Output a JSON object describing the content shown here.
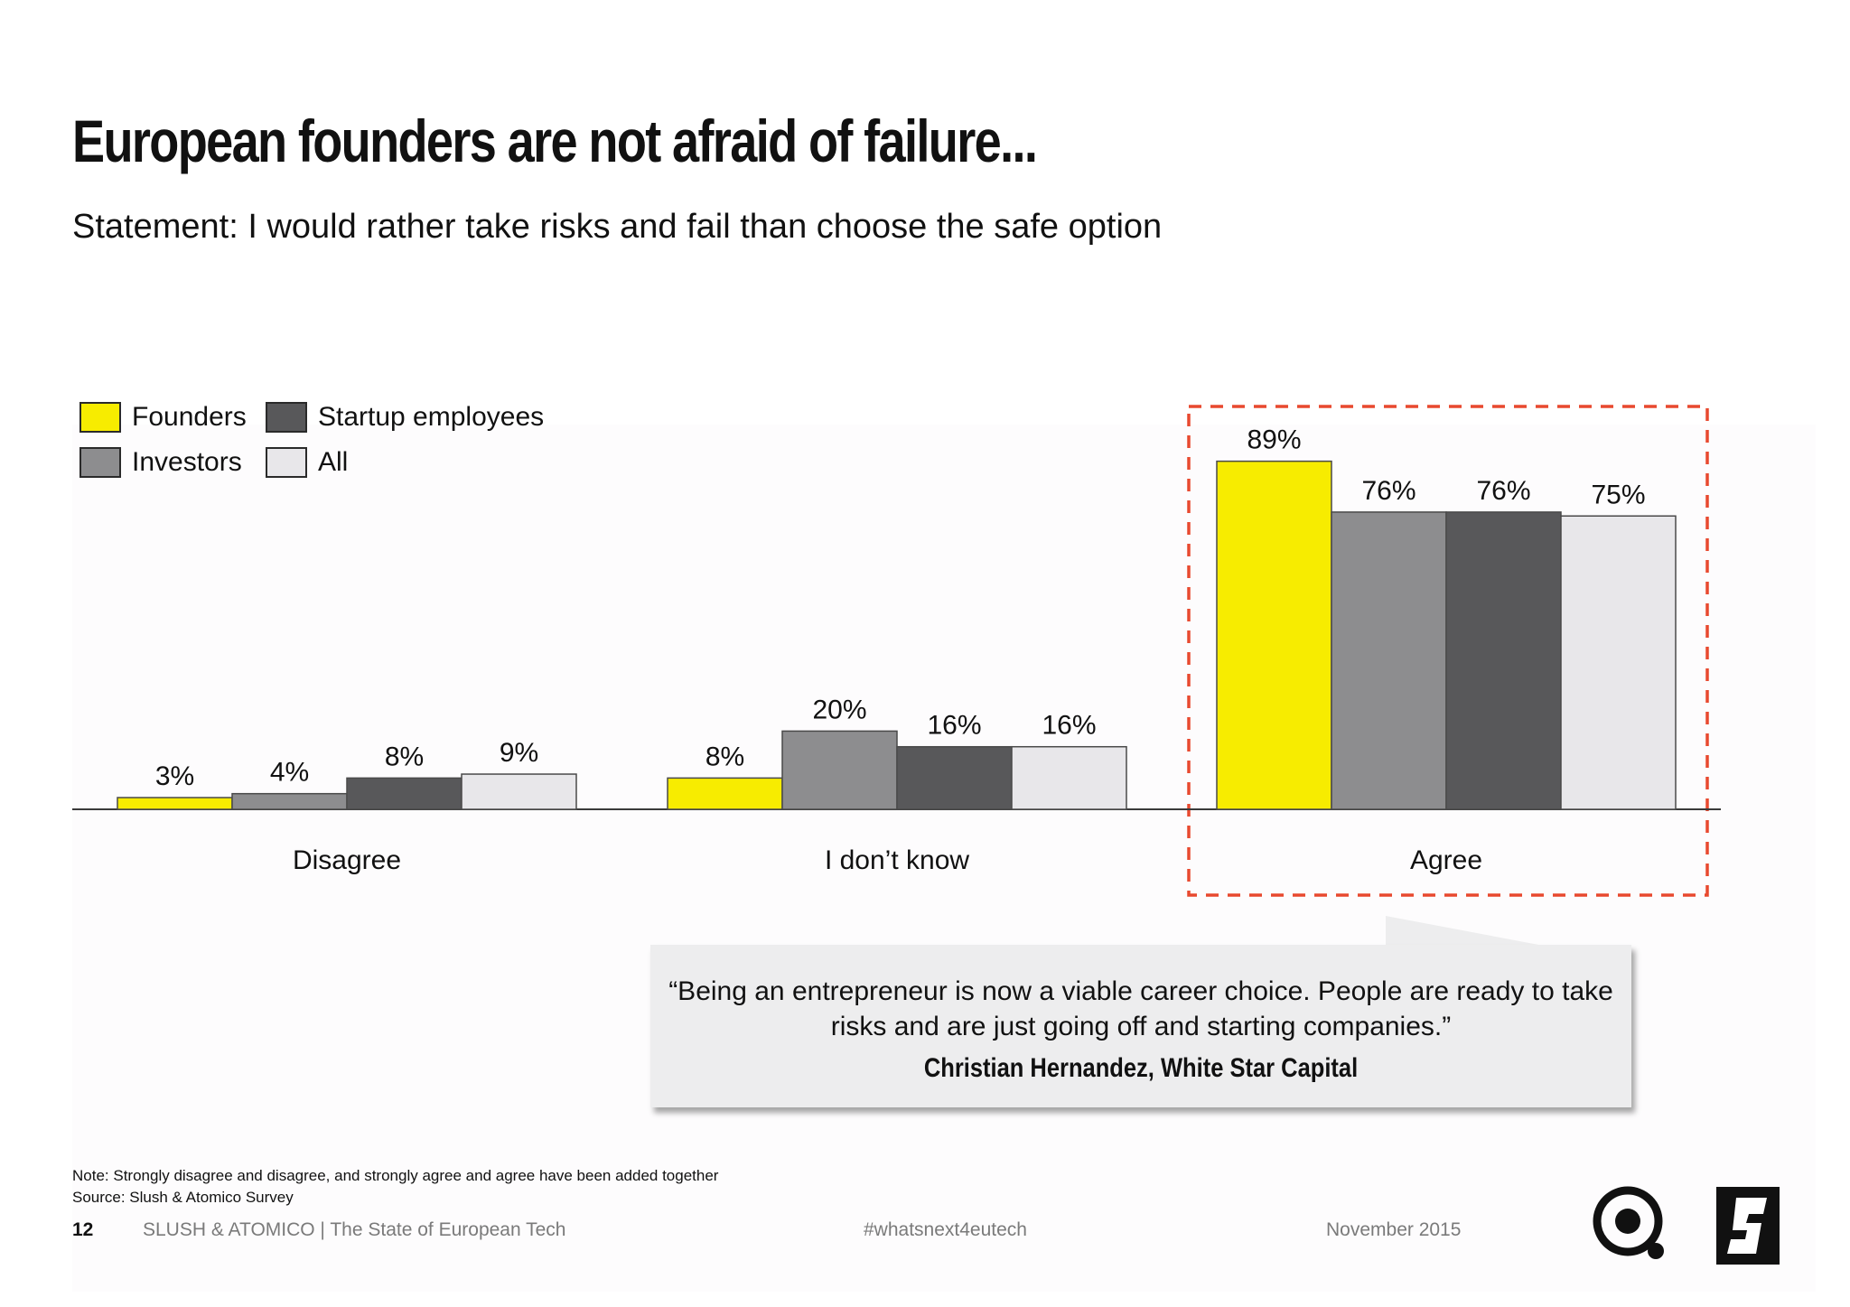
{
  "title": "European founders are not afraid of failure...",
  "subtitle": "Statement: I would rather take risks and fail than choose the safe option",
  "colors": {
    "founders": "#f7ec00",
    "investors": "#8d8d8f",
    "startup_employees": "#58585a",
    "all": "#e8e7ea",
    "highlight": "#e8492f"
  },
  "legend": [
    {
      "label": "Founders",
      "key": "founders"
    },
    {
      "label": "Startup employees",
      "key": "startup_employees"
    },
    {
      "label": "Investors",
      "key": "investors"
    },
    {
      "label": "All",
      "key": "all"
    }
  ],
  "chart_data": {
    "type": "bar",
    "title": "",
    "categories": [
      "Disagree",
      "I don’t know",
      "Agree"
    ],
    "series": [
      {
        "name": "Founders",
        "values": [
          3,
          8,
          89
        ]
      },
      {
        "name": "Investors",
        "values": [
          4,
          20,
          76
        ]
      },
      {
        "name": "Startup employees",
        "values": [
          8,
          16,
          76
        ]
      },
      {
        "name": "All",
        "values": [
          9,
          16,
          75
        ]
      }
    ],
    "value_labels": [
      [
        "3%",
        "8%",
        "89%"
      ],
      [
        "4%",
        "20%",
        "76%"
      ],
      [
        "8%",
        "16%",
        "76%"
      ],
      [
        "9%",
        "16%",
        "75%"
      ]
    ],
    "unit": "%",
    "ylim": [
      0,
      100
    ],
    "grid": false,
    "legend_position": "top-left",
    "highlighted_category": "Agree"
  },
  "quote": {
    "text": "“Being an entrepreneur is now a viable career choice. People are ready to take risks and are just going off and starting companies.”",
    "author": "Christian Hernandez, White Star Capital"
  },
  "notes": {
    "note": "Note: Strongly disagree and disagree, and strongly agree and agree have been added together",
    "source": "Source: Slush & Atomico Survey"
  },
  "footer": {
    "page_number": "12",
    "organization": "SLUSH & ATOMICO  |  The State of European Tech",
    "hashtag": "#whatsnext4eutech",
    "date": "November 2015"
  },
  "logos": [
    "atomico-logo",
    "slush-logo"
  ]
}
